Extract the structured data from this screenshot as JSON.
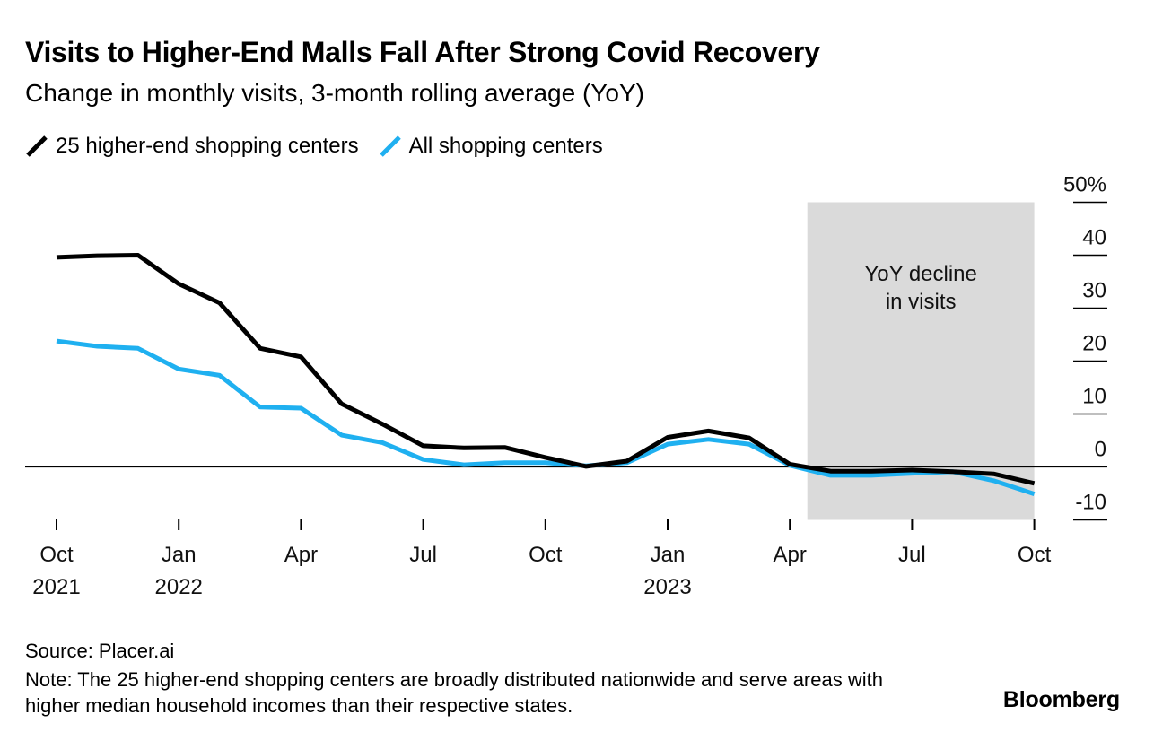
{
  "header": {
    "title": "Visits to Higher-End Malls Fall After Strong Covid Recovery",
    "subtitle": "Change in monthly visits, 3-month rolling average (YoY)"
  },
  "colors": {
    "higher_end": "#000000",
    "all_centers": "#1fb0f0",
    "shade": "#dadada",
    "axis": "#000000"
  },
  "chart_data": {
    "type": "line",
    "title": "Visits to Higher-End Malls Fall After Strong Covid Recovery",
    "subtitle": "Change in monthly visits, 3-month rolling average (YoY)",
    "xlabel": "",
    "ylabel": "",
    "ylim": [
      -10,
      50
    ],
    "y_ticks": [
      -10,
      0,
      10,
      20,
      30,
      40,
      50
    ],
    "y_tick_labels": [
      "-10",
      "0",
      "10",
      "20",
      "30",
      "40",
      "50%"
    ],
    "x_tick_labels": [
      {
        "month": "Oct",
        "year": "2021"
      },
      {
        "month": "Jan",
        "year": "2022"
      },
      {
        "month": "Apr",
        "year": ""
      },
      {
        "month": "Jul",
        "year": ""
      },
      {
        "month": "Oct",
        "year": ""
      },
      {
        "month": "Jan",
        "year": "2023"
      },
      {
        "month": "Apr",
        "year": ""
      },
      {
        "month": "Jul",
        "year": ""
      },
      {
        "month": "Oct",
        "year": ""
      }
    ],
    "x": [
      "2021-10",
      "2021-11",
      "2021-12",
      "2022-01",
      "2022-02",
      "2022-03",
      "2022-04",
      "2022-05",
      "2022-06",
      "2022-07",
      "2022-08",
      "2022-09",
      "2022-10",
      "2022-11",
      "2022-12",
      "2023-01",
      "2023-02",
      "2023-03",
      "2023-04",
      "2023-05",
      "2023-06",
      "2023-07",
      "2023-08",
      "2023-09",
      "2023-10"
    ],
    "series": [
      {
        "name": "25 higher-end shopping centers",
        "color": "#000000",
        "values": [
          39.6,
          39.9,
          40.0,
          34.6,
          31.0,
          22.4,
          20.8,
          11.9,
          8.1,
          4.0,
          3.6,
          3.7,
          1.8,
          0.1,
          1.1,
          5.6,
          6.8,
          5.5,
          0.5,
          -0.8,
          -0.8,
          -0.6,
          -0.9,
          -1.3,
          -3.1
        ]
      },
      {
        "name": "All shopping centers",
        "color": "#1fb0f0",
        "values": [
          23.8,
          22.8,
          22.4,
          18.5,
          17.3,
          11.3,
          11.1,
          6.0,
          4.6,
          1.4,
          0.4,
          0.8,
          0.8,
          0.2,
          0.8,
          4.3,
          5.2,
          4.3,
          0.3,
          -1.6,
          -1.6,
          -1.2,
          -0.9,
          -2.6,
          -5.1
        ]
      }
    ],
    "shaded_region": {
      "start": "2023-05",
      "end": "2023-10",
      "label_lines": [
        "YoY decline",
        "in visits"
      ]
    },
    "legend_position": "top-left"
  },
  "footer": {
    "source": "Source: Placer.ai",
    "note": "Note: The 25 higher-end shopping centers are broadly distributed nationwide and serve areas with higher median household incomes than their respective states.",
    "brand": "Bloomberg"
  }
}
